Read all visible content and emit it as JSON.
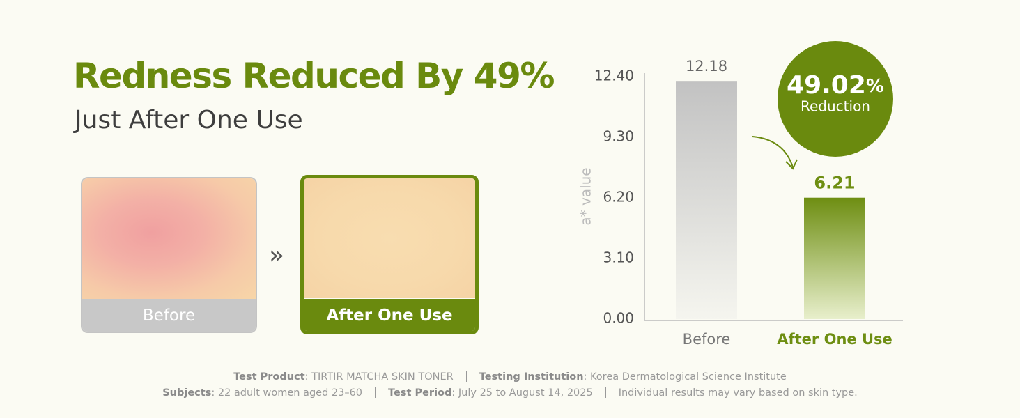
{
  "header": {
    "title": "Redness Reduced By 49%",
    "subtitle": "Just After One Use"
  },
  "comparison": {
    "before_label": "Before",
    "after_label": "After One Use"
  },
  "badge": {
    "number": "49.02",
    "unit": "%",
    "label": "Reduction"
  },
  "chart_data": {
    "type": "bar",
    "ylabel": "a* value",
    "categories": [
      "Before",
      "After One Use"
    ],
    "values": [
      12.18,
      6.21
    ],
    "colors": [
      "#c2c2c2",
      "#6e8e12"
    ],
    "ylim": [
      0,
      12.4
    ],
    "yticks": [
      {
        "value": 0,
        "label": "0.00"
      },
      {
        "value": 3.1,
        "label": "3.10"
      },
      {
        "value": 6.2,
        "label": "6.20"
      },
      {
        "value": 9.3,
        "label": "9.30"
      },
      {
        "value": 12.4,
        "label": "12.40"
      }
    ]
  },
  "footer": {
    "lines": [
      [
        {
          "key": "Test Product",
          "text": ": TIRTIR MATCHA SKIN TONER"
        },
        {
          "key": "Testing Institution",
          "text": ": Korea Dermatological Science Institute"
        }
      ],
      [
        {
          "key": "Subjects",
          "text": ": 22 adult women aged 23–60"
        },
        {
          "key": "Test Period",
          "text": ": July 25 to August 14, 2025"
        },
        {
          "key": "",
          "text": "Individual results may vary based on skin type."
        }
      ]
    ]
  }
}
